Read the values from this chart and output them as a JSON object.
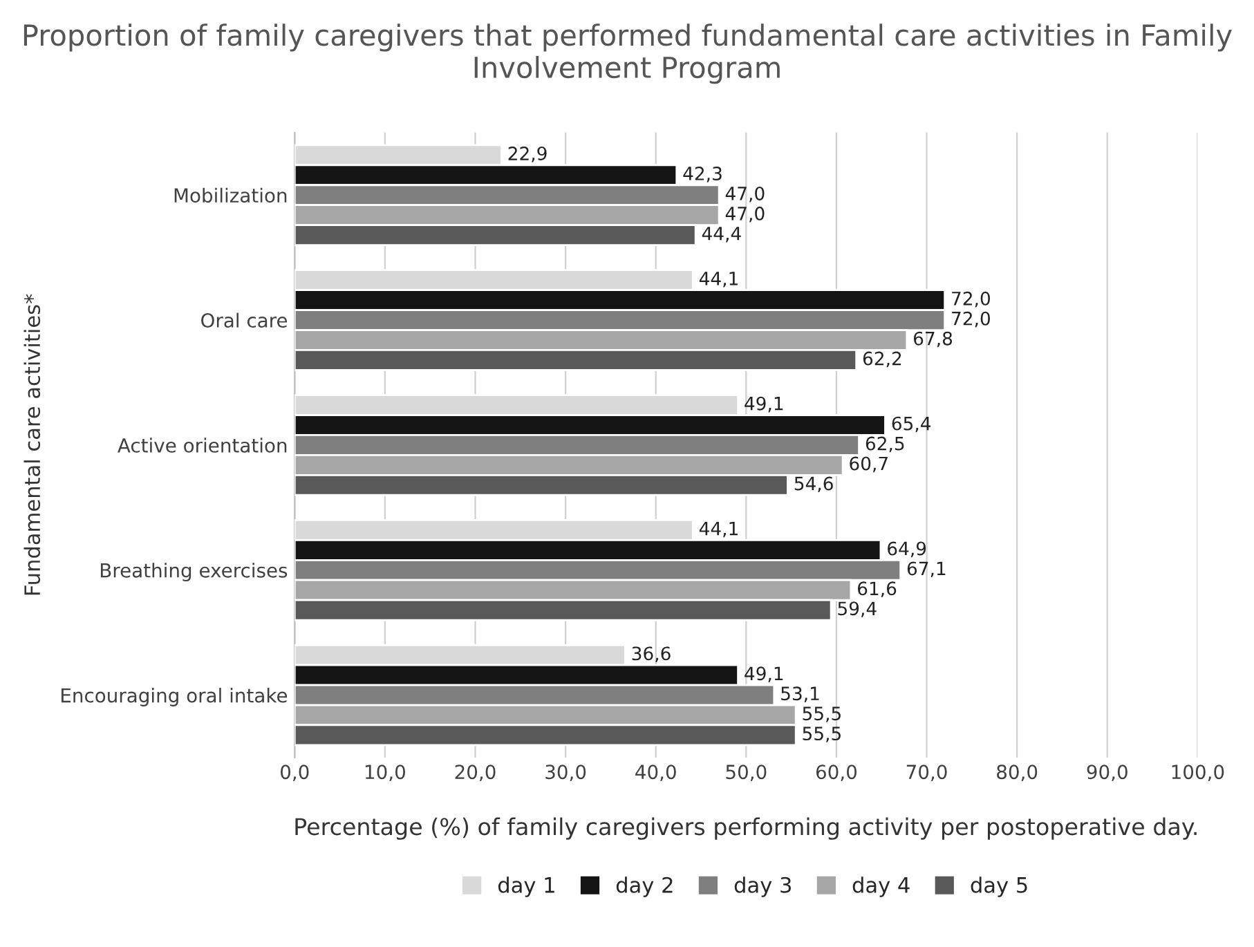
{
  "chart_data": {
    "type": "bar",
    "orientation": "horizontal",
    "title": "Proportion of family caregivers that performed fundamental care activities in Family Involvement Program",
    "xlabel": "Percentage (%) of family caregivers performing activity per postoperative day.",
    "ylabel": "Fundamental care activities*",
    "categories": [
      "Mobilization",
      "Oral care",
      "Active orientation",
      "Breathing exercises",
      "Encouraging oral intake"
    ],
    "series": [
      {
        "name": "day 1",
        "color": "#d9d9d9",
        "values": [
          22.9,
          44.1,
          49.1,
          44.1,
          36.6
        ],
        "value_labels": [
          "22,9",
          "44,1",
          "49,1",
          "44,1",
          "36,6"
        ]
      },
      {
        "name": "day 2",
        "color": "#141414",
        "values": [
          42.3,
          72.0,
          65.4,
          64.9,
          49.1
        ],
        "value_labels": [
          "42,3",
          "72,0",
          "65,4",
          "64,9",
          "49,1"
        ]
      },
      {
        "name": "day 3",
        "color": "#7f7f7f",
        "values": [
          47.0,
          72.0,
          62.5,
          67.1,
          53.1
        ],
        "value_labels": [
          "47,0",
          "72,0",
          "62,5",
          "67,1",
          "53,1"
        ]
      },
      {
        "name": "day 4",
        "color": "#a6a6a6",
        "values": [
          47.0,
          67.8,
          60.7,
          61.6,
          55.5
        ],
        "value_labels": [
          "47,0",
          "67,8",
          "60,7",
          "61,6",
          "55,5"
        ]
      },
      {
        "name": "day 5",
        "color": "#595959",
        "values": [
          44.4,
          62.2,
          54.6,
          59.4,
          55.5
        ],
        "value_labels": [
          "44,4",
          "62,2",
          "54,6",
          "59,4",
          "55,5"
        ]
      }
    ],
    "xlim": [
      0,
      100
    ],
    "xticks": [
      {
        "value": 0,
        "label": "0,0"
      },
      {
        "value": 10,
        "label": "10,0"
      },
      {
        "value": 20,
        "label": "20,0"
      },
      {
        "value": 30,
        "label": "30,0"
      },
      {
        "value": 40,
        "label": "40,0"
      },
      {
        "value": 50,
        "label": "50,0"
      },
      {
        "value": 60,
        "label": "60,0"
      },
      {
        "value": 70,
        "label": "70,0"
      },
      {
        "value": 80,
        "label": "80,0"
      },
      {
        "value": 90,
        "label": "90,0"
      },
      {
        "value": 100,
        "label": "100,0"
      }
    ],
    "grid": "x",
    "legend": "bottom"
  }
}
